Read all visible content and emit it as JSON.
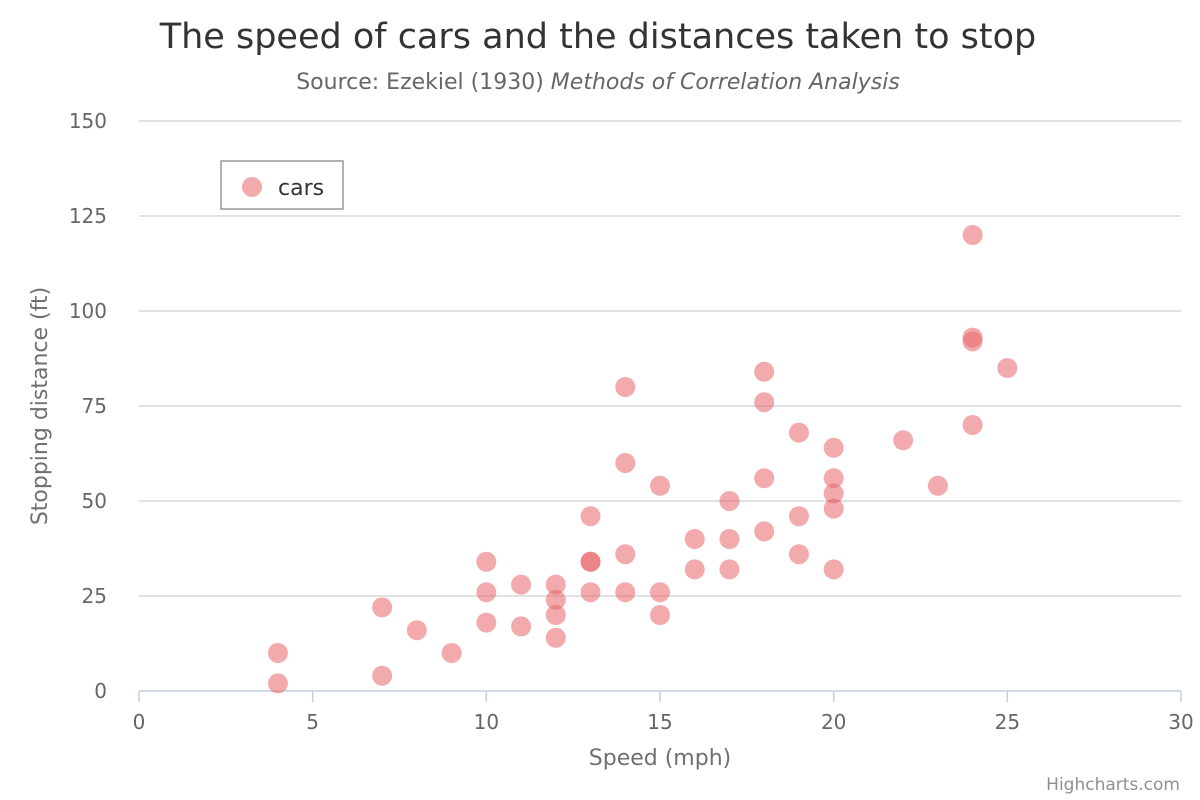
{
  "chart_data": {
    "type": "scatter",
    "title": "The speed of cars and the distances taken to stop",
    "subtitle": {
      "prefix": "Source: Ezekiel (1930) ",
      "italic": "Methods of Correlation Analysis"
    },
    "xlabel": "Speed (mph)",
    "ylabel": "Stopping distance (ft)",
    "xlim": [
      0,
      30
    ],
    "ylim": [
      0,
      150
    ],
    "xticks": [
      0,
      5,
      10,
      15,
      20,
      25,
      30
    ],
    "yticks": [
      0,
      25,
      50,
      75,
      100,
      125,
      150
    ],
    "grid": "horizontal",
    "legend_position": "top-left",
    "credits": "Highcharts.com",
    "series": [
      {
        "name": "cars",
        "color": "#e8656a",
        "opacity": 0.55,
        "points": [
          [
            4,
            2
          ],
          [
            4,
            10
          ],
          [
            7,
            4
          ],
          [
            7,
            22
          ],
          [
            8,
            16
          ],
          [
            9,
            10
          ],
          [
            10,
            18
          ],
          [
            10,
            26
          ],
          [
            10,
            34
          ],
          [
            11,
            17
          ],
          [
            11,
            28
          ],
          [
            12,
            14
          ],
          [
            12,
            20
          ],
          [
            12,
            24
          ],
          [
            12,
            28
          ],
          [
            13,
            26
          ],
          [
            13,
            34
          ],
          [
            13,
            34
          ],
          [
            13,
            46
          ],
          [
            14,
            26
          ],
          [
            14,
            36
          ],
          [
            14,
            60
          ],
          [
            14,
            80
          ],
          [
            15,
            20
          ],
          [
            15,
            26
          ],
          [
            15,
            54
          ],
          [
            16,
            32
          ],
          [
            16,
            40
          ],
          [
            17,
            32
          ],
          [
            17,
            40
          ],
          [
            17,
            50
          ],
          [
            18,
            42
          ],
          [
            18,
            56
          ],
          [
            18,
            76
          ],
          [
            18,
            84
          ],
          [
            19,
            36
          ],
          [
            19,
            46
          ],
          [
            19,
            68
          ],
          [
            20,
            32
          ],
          [
            20,
            48
          ],
          [
            20,
            52
          ],
          [
            20,
            56
          ],
          [
            20,
            64
          ],
          [
            22,
            66
          ],
          [
            23,
            54
          ],
          [
            24,
            70
          ],
          [
            24,
            92
          ],
          [
            24,
            93
          ],
          [
            24,
            120
          ],
          [
            25,
            85
          ]
        ]
      }
    ]
  }
}
